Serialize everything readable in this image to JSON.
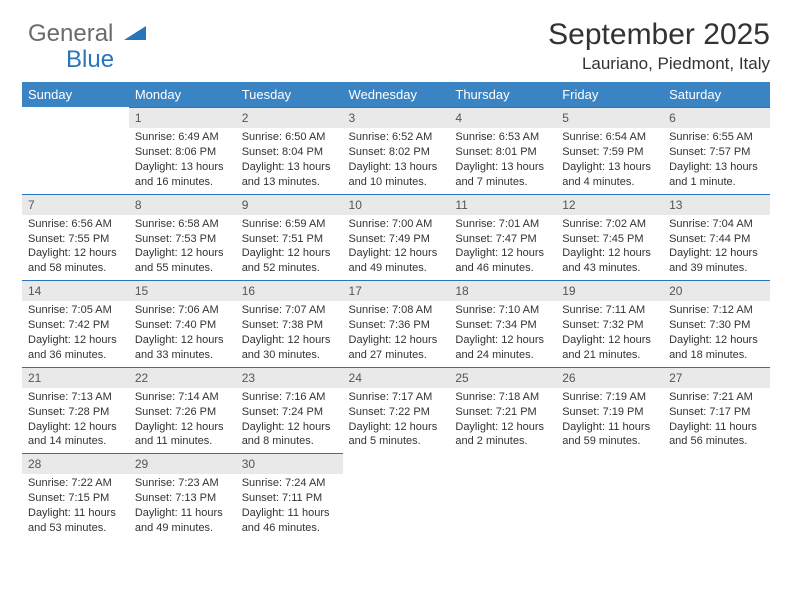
{
  "logo": {
    "text1": "General",
    "text2": "Blue"
  },
  "title": "September 2025",
  "subtitle": "Lauriano, Piedmont, Italy",
  "colors": {
    "header_bg": "#3b84c4",
    "header_fg": "#ffffff",
    "daynum_bg": "#e9e9e9",
    "daynum_border": "#2a74bb",
    "logo_gray": "#6b6b6b",
    "logo_blue": "#2a74bb",
    "page_bg": "#ffffff"
  },
  "weekdays": [
    "Sunday",
    "Monday",
    "Tuesday",
    "Wednesday",
    "Thursday",
    "Friday",
    "Saturday"
  ],
  "weeks": [
    [
      null,
      {
        "n": "1",
        "sr": "Sunrise: 6:49 AM",
        "ss": "Sunset: 8:06 PM",
        "dl": "Daylight: 13 hours and 16 minutes."
      },
      {
        "n": "2",
        "sr": "Sunrise: 6:50 AM",
        "ss": "Sunset: 8:04 PM",
        "dl": "Daylight: 13 hours and 13 minutes."
      },
      {
        "n": "3",
        "sr": "Sunrise: 6:52 AM",
        "ss": "Sunset: 8:02 PM",
        "dl": "Daylight: 13 hours and 10 minutes."
      },
      {
        "n": "4",
        "sr": "Sunrise: 6:53 AM",
        "ss": "Sunset: 8:01 PM",
        "dl": "Daylight: 13 hours and 7 minutes."
      },
      {
        "n": "5",
        "sr": "Sunrise: 6:54 AM",
        "ss": "Sunset: 7:59 PM",
        "dl": "Daylight: 13 hours and 4 minutes."
      },
      {
        "n": "6",
        "sr": "Sunrise: 6:55 AM",
        "ss": "Sunset: 7:57 PM",
        "dl": "Daylight: 13 hours and 1 minute."
      }
    ],
    [
      {
        "n": "7",
        "sr": "Sunrise: 6:56 AM",
        "ss": "Sunset: 7:55 PM",
        "dl": "Daylight: 12 hours and 58 minutes."
      },
      {
        "n": "8",
        "sr": "Sunrise: 6:58 AM",
        "ss": "Sunset: 7:53 PM",
        "dl": "Daylight: 12 hours and 55 minutes."
      },
      {
        "n": "9",
        "sr": "Sunrise: 6:59 AM",
        "ss": "Sunset: 7:51 PM",
        "dl": "Daylight: 12 hours and 52 minutes."
      },
      {
        "n": "10",
        "sr": "Sunrise: 7:00 AM",
        "ss": "Sunset: 7:49 PM",
        "dl": "Daylight: 12 hours and 49 minutes."
      },
      {
        "n": "11",
        "sr": "Sunrise: 7:01 AM",
        "ss": "Sunset: 7:47 PM",
        "dl": "Daylight: 12 hours and 46 minutes."
      },
      {
        "n": "12",
        "sr": "Sunrise: 7:02 AM",
        "ss": "Sunset: 7:45 PM",
        "dl": "Daylight: 12 hours and 43 minutes."
      },
      {
        "n": "13",
        "sr": "Sunrise: 7:04 AM",
        "ss": "Sunset: 7:44 PM",
        "dl": "Daylight: 12 hours and 39 minutes."
      }
    ],
    [
      {
        "n": "14",
        "sr": "Sunrise: 7:05 AM",
        "ss": "Sunset: 7:42 PM",
        "dl": "Daylight: 12 hours and 36 minutes."
      },
      {
        "n": "15",
        "sr": "Sunrise: 7:06 AM",
        "ss": "Sunset: 7:40 PM",
        "dl": "Daylight: 12 hours and 33 minutes."
      },
      {
        "n": "16",
        "sr": "Sunrise: 7:07 AM",
        "ss": "Sunset: 7:38 PM",
        "dl": "Daylight: 12 hours and 30 minutes."
      },
      {
        "n": "17",
        "sr": "Sunrise: 7:08 AM",
        "ss": "Sunset: 7:36 PM",
        "dl": "Daylight: 12 hours and 27 minutes."
      },
      {
        "n": "18",
        "sr": "Sunrise: 7:10 AM",
        "ss": "Sunset: 7:34 PM",
        "dl": "Daylight: 12 hours and 24 minutes."
      },
      {
        "n": "19",
        "sr": "Sunrise: 7:11 AM",
        "ss": "Sunset: 7:32 PM",
        "dl": "Daylight: 12 hours and 21 minutes."
      },
      {
        "n": "20",
        "sr": "Sunrise: 7:12 AM",
        "ss": "Sunset: 7:30 PM",
        "dl": "Daylight: 12 hours and 18 minutes."
      }
    ],
    [
      {
        "n": "21",
        "sr": "Sunrise: 7:13 AM",
        "ss": "Sunset: 7:28 PM",
        "dl": "Daylight: 12 hours and 14 minutes."
      },
      {
        "n": "22",
        "sr": "Sunrise: 7:14 AM",
        "ss": "Sunset: 7:26 PM",
        "dl": "Daylight: 12 hours and 11 minutes."
      },
      {
        "n": "23",
        "sr": "Sunrise: 7:16 AM",
        "ss": "Sunset: 7:24 PM",
        "dl": "Daylight: 12 hours and 8 minutes."
      },
      {
        "n": "24",
        "sr": "Sunrise: 7:17 AM",
        "ss": "Sunset: 7:22 PM",
        "dl": "Daylight: 12 hours and 5 minutes."
      },
      {
        "n": "25",
        "sr": "Sunrise: 7:18 AM",
        "ss": "Sunset: 7:21 PM",
        "dl": "Daylight: 12 hours and 2 minutes."
      },
      {
        "n": "26",
        "sr": "Sunrise: 7:19 AM",
        "ss": "Sunset: 7:19 PM",
        "dl": "Daylight: 11 hours and 59 minutes."
      },
      {
        "n": "27",
        "sr": "Sunrise: 7:21 AM",
        "ss": "Sunset: 7:17 PM",
        "dl": "Daylight: 11 hours and 56 minutes."
      }
    ],
    [
      {
        "n": "28",
        "sr": "Sunrise: 7:22 AM",
        "ss": "Sunset: 7:15 PM",
        "dl": "Daylight: 11 hours and 53 minutes."
      },
      {
        "n": "29",
        "sr": "Sunrise: 7:23 AM",
        "ss": "Sunset: 7:13 PM",
        "dl": "Daylight: 11 hours and 49 minutes."
      },
      {
        "n": "30",
        "sr": "Sunrise: 7:24 AM",
        "ss": "Sunset: 7:11 PM",
        "dl": "Daylight: 11 hours and 46 minutes."
      },
      null,
      null,
      null,
      null
    ]
  ]
}
